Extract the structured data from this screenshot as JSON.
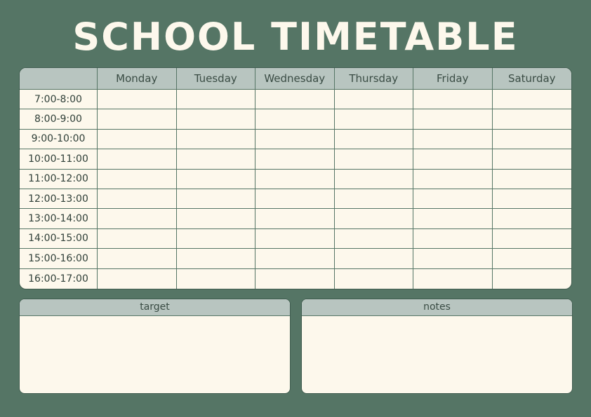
{
  "title": "SCHOOL TIMETABLE",
  "days": [
    "Monday",
    "Tuesday",
    "Wednesday",
    "Thursday",
    "Friday",
    "Saturday"
  ],
  "times": [
    "7:00-8:00",
    "8:00-9:00",
    "9:00-10:00",
    "10:00-11:00",
    "11:00-12:00",
    "12:00-13:00",
    "13:00-14:00",
    "14:00-15:00",
    "15:00-16:00",
    "16:00-17:00"
  ],
  "target_label": "target",
  "notes_label": "notes",
  "colors": {
    "background": "#557565",
    "header": "#b8c5c0",
    "cell": "#fdf8ec",
    "title": "#fdf8ec"
  }
}
